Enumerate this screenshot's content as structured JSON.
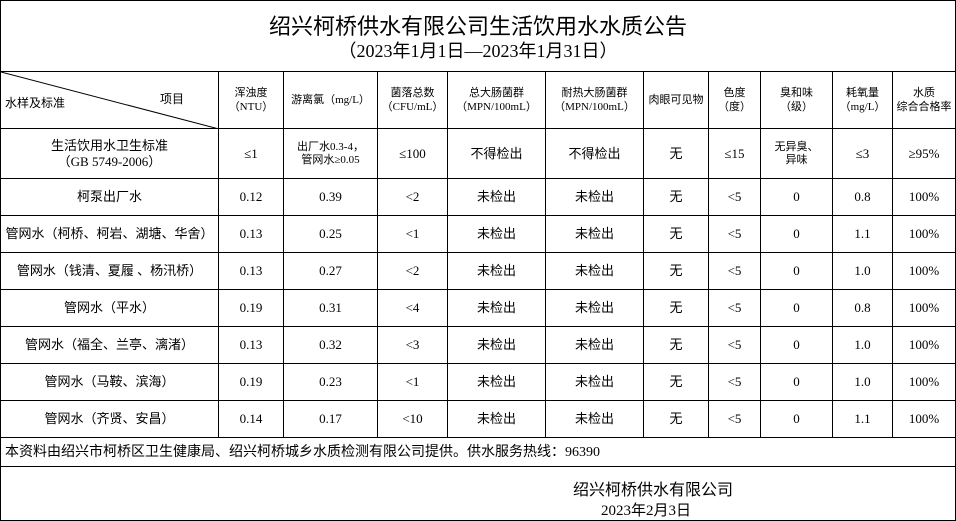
{
  "header": {
    "title": "绍兴柯桥供水有限公司生活饮用水水质公告",
    "subtitle": "（2023年1月1日—2023年1月31日）"
  },
  "table": {
    "corner": {
      "left": "水样及标准",
      "right": "项目"
    },
    "columns": [
      [
        "浑浊度",
        "（NTU）"
      ],
      [
        "游离氯（mg/L）"
      ],
      [
        "菌落总数",
        "（CFU/mL）"
      ],
      [
        "总大肠菌群",
        "（MPN/100mL）"
      ],
      [
        "耐热大肠菌群",
        "（MPN/100mL）"
      ],
      [
        "肉眼可见物"
      ],
      [
        "色度",
        "（度）"
      ],
      [
        "臭和味",
        "（级）"
      ],
      [
        "耗氧量",
        "（mg/L）"
      ],
      [
        "水质",
        "综合合格率"
      ]
    ],
    "standard": {
      "label": [
        "生活饮用水卫生标准",
        "（GB 5749-2006）"
      ],
      "values": [
        [
          "≤1"
        ],
        [
          "出厂水0.3-4，",
          "管网水≥0.05"
        ],
        [
          "≤100"
        ],
        [
          "不得检出"
        ],
        [
          "不得检出"
        ],
        [
          "无"
        ],
        [
          "≤15"
        ],
        [
          "无异臭、",
          "异味"
        ],
        [
          "≤3"
        ],
        [
          "≥95%"
        ]
      ]
    },
    "rows": [
      {
        "label": "柯泵出厂水",
        "values": [
          "0.12",
          "0.39",
          "<2",
          "未检出",
          "未检出",
          "无",
          "<5",
          "0",
          "0.8",
          "100%"
        ]
      },
      {
        "label": "管网水（柯桥、柯岩、湖塘、华舍）",
        "values": [
          "0.13",
          "0.25",
          "<1",
          "未检出",
          "未检出",
          "无",
          "<5",
          "0",
          "1.1",
          "100%"
        ]
      },
      {
        "label": "管网水（钱清、夏履 、杨汛桥）",
        "values": [
          "0.13",
          "0.27",
          "<2",
          "未检出",
          "未检出",
          "无",
          "<5",
          "0",
          "1.0",
          "100%"
        ]
      },
      {
        "label": "管网水（平水）",
        "values": [
          "0.19",
          "0.31",
          "<4",
          "未检出",
          "未检出",
          "无",
          "<5",
          "0",
          "0.8",
          "100%"
        ]
      },
      {
        "label": "管网水（福全、兰亭、漓渚）",
        "values": [
          "0.13",
          "0.32",
          "<3",
          "未检出",
          "未检出",
          "无",
          "<5",
          "0",
          "1.0",
          "100%"
        ]
      },
      {
        "label": "管网水（马鞍、滨海）",
        "values": [
          "0.19",
          "0.23",
          "<1",
          "未检出",
          "未检出",
          "无",
          "<5",
          "0",
          "1.0",
          "100%"
        ]
      },
      {
        "label": "管网水（齐贤、安昌）",
        "values": [
          "0.14",
          "0.17",
          "<10",
          "未检出",
          "未检出",
          "无",
          "<5",
          "0",
          "1.1",
          "100%"
        ]
      }
    ]
  },
  "footer": {
    "note": "本资料由绍兴市柯桥区卫生健康局、绍兴柯桥城乡水质检测有限公司提供。供水服务热线：96390",
    "company": "绍兴柯桥供水有限公司",
    "date": "2023年2月3日"
  }
}
